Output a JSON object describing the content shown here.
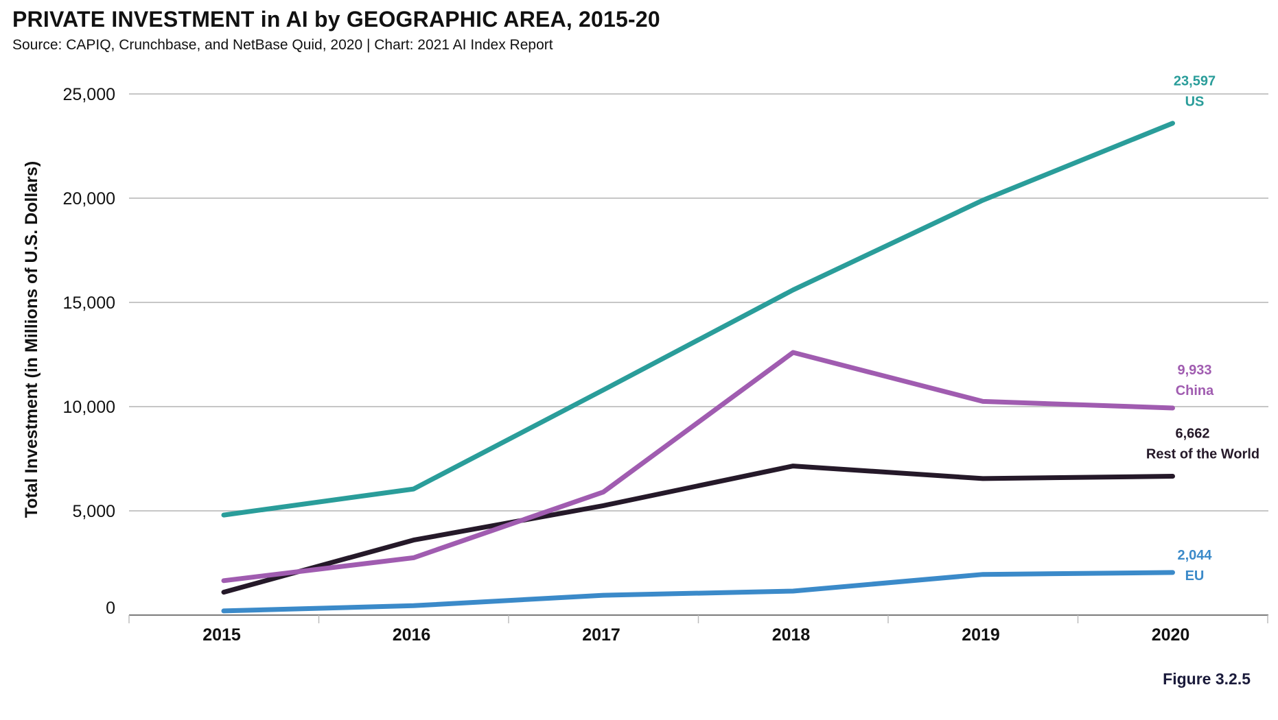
{
  "title": "PRIVATE INVESTMENT in AI by GEOGRAPHIC AREA, 2015-20",
  "subtitle": "Source: CAPIQ, Crunchbase, and NetBase Quid, 2020 | Chart: 2021 AI Index Report",
  "figure_label": "Figure 3.2.5",
  "chart_data": {
    "type": "line",
    "title": "PRIVATE INVESTMENT in AI by GEOGRAPHIC AREA, 2015-20",
    "xlabel": "",
    "ylabel": "Total Investment (in Millions of U.S. Dollars)",
    "x": [
      "2015",
      "2016",
      "2017",
      "2018",
      "2019",
      "2020"
    ],
    "ylim": [
      0,
      25000
    ],
    "yticks": [
      0,
      5000,
      10000,
      15000,
      20000,
      25000
    ],
    "ytick_labels": [
      "0",
      "5,000",
      "10,000",
      "15,000",
      "20,000",
      "25,000"
    ],
    "grid": "horizontal",
    "legend": "direct labels at line ends",
    "series": [
      {
        "name": "US",
        "color": "#2a9d9a",
        "values": [
          4800,
          6050,
          10800,
          15600,
          19900,
          23597
        ],
        "end_value_label": "23,597"
      },
      {
        "name": "China",
        "color": "#a05cb0",
        "values": [
          1650,
          2750,
          5900,
          12600,
          10250,
          9933
        ],
        "end_value_label": "9,933"
      },
      {
        "name": "Rest of the World",
        "color": "#251929",
        "values": [
          1100,
          3600,
          5250,
          7150,
          6550,
          6662
        ],
        "end_value_label": "6,662"
      },
      {
        "name": "EU",
        "color": "#3b8ac9",
        "values": [
          200,
          450,
          950,
          1150,
          1950,
          2044
        ],
        "end_value_label": "2,044"
      }
    ]
  }
}
